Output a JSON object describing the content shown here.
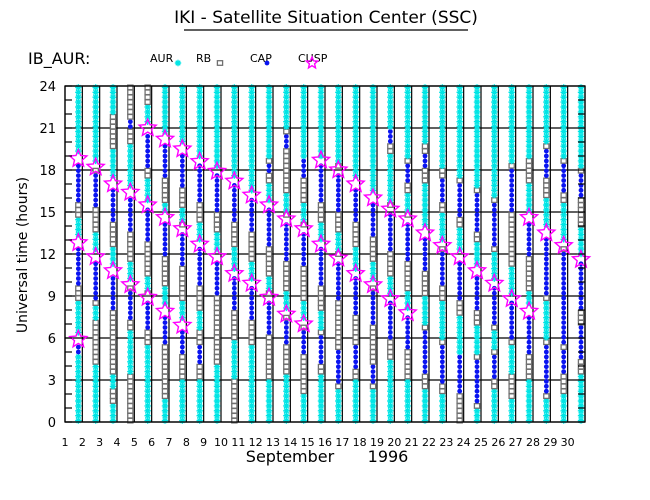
{
  "chart_data": {
    "type": "scatter",
    "title": "IKI - Satellite Situation Center (SSC)",
    "instrument": "IB_AUR:",
    "ylabel": "Universal time (hours)",
    "xlabel_month": "September",
    "xlabel_year": "1996",
    "ylim": [
      0,
      24
    ],
    "xlim": [
      1,
      31
    ],
    "yticks": [
      0,
      3,
      6,
      9,
      12,
      15,
      18,
      21,
      24
    ],
    "xticks": [
      1,
      2,
      3,
      4,
      5,
      6,
      7,
      8,
      9,
      10,
      11,
      12,
      13,
      14,
      15,
      16,
      17,
      18,
      19,
      20,
      21,
      22,
      23,
      24,
      25,
      26,
      27,
      28,
      29,
      30
    ],
    "grid": true,
    "legend_position": "top-left",
    "legend": [
      {
        "label": "AUR",
        "symbol": "asterisk",
        "color": "#00e5e5"
      },
      {
        "label": "RB",
        "symbol": "square",
        "color": "#707070"
      },
      {
        "label": "CAP",
        "symbol": "dot",
        "color": "#0a14f0"
      },
      {
        "label": "CUSP",
        "symbol": "star",
        "color": "#ff00ff"
      }
    ],
    "sample_step_hours": 0.35,
    "default_region": "RB",
    "days": [
      {
        "day": 1,
        "cusp": [
          18.8,
          12.8,
          5.9
        ],
        "cap": [
          [
            15.6,
            18.5
          ],
          [
            9.8,
            12.5
          ],
          [
            5.0,
            5.7
          ]
        ],
        "aur": [
          [
            19.1,
            24
          ],
          [
            13.1,
            14.6
          ],
          [
            6.2,
            8.5
          ],
          [
            0,
            4.8
          ]
        ]
      },
      {
        "day": 2,
        "cusp": [
          18.2,
          11.8
        ],
        "cap": [
          [
            15.4,
            17.9
          ],
          [
            8.6,
            11.5
          ]
        ],
        "aur": [
          [
            18.5,
            24
          ],
          [
            12.1,
            13.5
          ],
          [
            7.2,
            8.4
          ],
          [
            0,
            4.2
          ]
        ]
      },
      {
        "day": 3,
        "cusp": [
          17.0,
          10.8
        ],
        "cap": [
          [
            14.2,
            16.7
          ],
          [
            8.0,
            10.5
          ]
        ],
        "aur": [
          [
            17.3,
            19.5
          ],
          [
            22,
            24
          ],
          [
            11.1,
            12.5
          ],
          [
            2.5,
            3.5
          ],
          [
            0,
            1.2
          ]
        ]
      },
      {
        "day": 4,
        "cusp": [
          16.4,
          9.8
        ],
        "cap": [
          [
            13.4,
            16.1
          ],
          [
            7.2,
            9.5
          ],
          [
            20.8,
            21.6
          ]
        ],
        "aur": [
          [
            16.7,
            20
          ],
          [
            10.1,
            11.6
          ],
          [
            3.5,
            6.5
          ]
        ]
      },
      {
        "day": 5,
        "cusp": [
          21.0,
          15.5,
          8.9
        ],
        "cap": [
          [
            18.2,
            20.7
          ],
          [
            12.9,
            15.2
          ],
          [
            6.5,
            8.6
          ]
        ],
        "aur": [
          [
            21.3,
            22.8
          ],
          [
            15.8,
            17.5
          ],
          [
            9.2,
            10.5
          ],
          [
            0,
            5.5
          ]
        ]
      },
      {
        "day": 6,
        "cusp": [
          20.2,
          14.6,
          7.9
        ],
        "cap": [
          [
            17.3,
            19.9
          ],
          [
            11.8,
            14.3
          ],
          [
            5.6,
            7.6
          ]
        ],
        "aur": [
          [
            20.5,
            24
          ],
          [
            14.9,
            15.8
          ],
          [
            8.2,
            9.6
          ],
          [
            0,
            1.5
          ]
        ]
      },
      {
        "day": 7,
        "cusp": [
          19.5,
          13.8,
          6.9
        ],
        "cap": [
          [
            16.8,
            19.2
          ],
          [
            11.0,
            13.5
          ],
          [
            5.0,
            6.6
          ]
        ],
        "aur": [
          [
            19.8,
            24
          ],
          [
            14.1,
            15.2
          ],
          [
            7.2,
            8.8
          ],
          [
            0,
            3
          ]
        ]
      },
      {
        "day": 8,
        "cusp": [
          18.6,
          12.7
        ],
        "cap": [
          [
            15.6,
            18.3
          ],
          [
            9.8,
            12.4
          ],
          [
            4.0,
            5.5
          ]
        ],
        "aur": [
          [
            18.9,
            24
          ],
          [
            13.0,
            14.2
          ],
          [
            6.5,
            8
          ],
          [
            0,
            3.2
          ]
        ]
      },
      {
        "day": 9,
        "cusp": [
          17.9,
          11.8
        ],
        "cap": [
          [
            15.0,
            17.6
          ],
          [
            9.0,
            11.5
          ]
        ],
        "aur": [
          [
            18.2,
            24
          ],
          [
            12.1,
            13.4
          ],
          [
            0,
            4
          ]
        ]
      },
      {
        "day": 10,
        "cusp": [
          17.2,
          10.6
        ],
        "cap": [
          [
            14.3,
            16.9
          ],
          [
            7.9,
            10.3
          ]
        ],
        "aur": [
          [
            17.5,
            24
          ],
          [
            10.9,
            12.5
          ],
          [
            3,
            6
          ]
        ]
      },
      {
        "day": 11,
        "cusp": [
          16.2,
          9.9
        ],
        "cap": [
          [
            13.4,
            15.9
          ],
          [
            7.2,
            9.6
          ]
        ],
        "aur": [
          [
            16.5,
            24
          ],
          [
            10.2,
            11.4
          ],
          [
            0,
            5.5
          ]
        ]
      },
      {
        "day": 12,
        "cusp": [
          15.5,
          8.9
        ],
        "cap": [
          [
            12.6,
            15.2
          ],
          [
            6.3,
            8.6
          ],
          [
            17.8,
            18.5
          ]
        ],
        "aur": [
          [
            15.8,
            17
          ],
          [
            19,
            24
          ],
          [
            9.2,
            10.5
          ],
          [
            0,
            3
          ]
        ]
      },
      {
        "day": 13,
        "cusp": [
          14.5,
          7.7
        ],
        "cap": [
          [
            11.6,
            14.2
          ],
          [
            5.4,
            7.4
          ],
          [
            19.5,
            20.5
          ]
        ],
        "aur": [
          [
            14.8,
            16.5
          ],
          [
            21,
            24
          ],
          [
            8.0,
            9.2
          ],
          [
            0,
            3.5
          ]
        ]
      },
      {
        "day": 14,
        "cusp": [
          13.8,
          7.0
        ],
        "cap": [
          [
            11.0,
            13.5
          ],
          [
            4.8,
            6.7
          ],
          [
            17.5,
            18.8
          ]
        ],
        "aur": [
          [
            14.1,
            15.5
          ],
          [
            19,
            24
          ],
          [
            7.3,
            8.5
          ],
          [
            0,
            2
          ]
        ]
      },
      {
        "day": 15,
        "cusp": [
          18.7,
          12.7
        ],
        "cap": [
          [
            15.8,
            18.4
          ],
          [
            9.8,
            12.4
          ],
          [
            4.2,
            6.2
          ]
        ],
        "aur": [
          [
            19.0,
            24
          ],
          [
            13.0,
            14.4
          ],
          [
            6.5,
            8
          ],
          [
            0,
            3.5
          ]
        ]
      },
      {
        "day": 16,
        "cusp": [
          18.0,
          11.7
        ],
        "cap": [
          [
            15.0,
            17.7
          ],
          [
            8.8,
            11.4
          ],
          [
            2.8,
            5.2
          ]
        ],
        "aur": [
          [
            18.3,
            24
          ],
          [
            12.0,
            13.6
          ],
          [
            0,
            2.2
          ]
        ]
      },
      {
        "day": 17,
        "cusp": [
          17.0,
          10.6
        ],
        "cap": [
          [
            14.2,
            16.7
          ],
          [
            7.6,
            10.3
          ],
          [
            3.8,
            5.5
          ]
        ],
        "aur": [
          [
            17.3,
            24
          ],
          [
            10.9,
            12.4
          ],
          [
            0,
            3
          ]
        ]
      },
      {
        "day": 18,
        "cusp": [
          16.0,
          9.8
        ],
        "cap": [
          [
            13.2,
            15.7
          ],
          [
            6.8,
            9.5
          ],
          [
            2.8,
            4.2
          ]
        ],
        "aur": [
          [
            16.3,
            24
          ],
          [
            10.1,
            11.5
          ],
          [
            0,
            2.5
          ]
        ]
      },
      {
        "day": 19,
        "cusp": [
          15.2,
          8.8
        ],
        "cap": [
          [
            12.2,
            14.9
          ],
          [
            6.0,
            8.5
          ],
          [
            19.8,
            20.8
          ]
        ],
        "aur": [
          [
            15.5,
            19
          ],
          [
            21,
            24
          ],
          [
            9.1,
            10.5
          ],
          [
            0,
            4.5
          ]
        ]
      },
      {
        "day": 20,
        "cusp": [
          14.5,
          7.8
        ],
        "cap": [
          [
            11.4,
            14.2
          ],
          [
            5.2,
            7.5
          ],
          [
            17.2,
            18.5
          ]
        ],
        "aur": [
          [
            14.8,
            16.5
          ],
          [
            19,
            24
          ],
          [
            8.1,
            9.5
          ],
          [
            0,
            3
          ]
        ]
      },
      {
        "day": 21,
        "cusp": [
          13.5
        ],
        "cap": [
          [
            10.6,
            13.2
          ],
          [
            3.5,
            6.5
          ],
          [
            18.0,
            19.2
          ]
        ],
        "aur": [
          [
            13.8,
            17
          ],
          [
            20,
            24
          ],
          [
            7,
            9
          ],
          [
            0,
            2.5
          ]
        ]
      },
      {
        "day": 22,
        "cusp": [
          12.6
        ],
        "cap": [
          [
            9.8,
            12.3
          ],
          [
            2.8,
            5.5
          ],
          [
            15.5,
            17.5
          ]
        ],
        "aur": [
          [
            12.9,
            15
          ],
          [
            18,
            24
          ],
          [
            6,
            8.5
          ],
          [
            0,
            2
          ]
        ]
      },
      {
        "day": 23,
        "cusp": [
          11.8
        ],
        "cap": [
          [
            8.8,
            11.5
          ],
          [
            2.2,
            4.8
          ],
          [
            14.5,
            17.0
          ]
        ],
        "aur": [
          [
            12.1,
            14
          ],
          [
            17.5,
            24
          ],
          [
            5,
            7.5
          ]
        ]
      },
      {
        "day": 24,
        "cusp": [
          10.8
        ],
        "cap": [
          [
            8.0,
            10.5
          ],
          [
            1.5,
            4.5
          ],
          [
            13.5,
            16.2
          ]
        ],
        "aur": [
          [
            11.1,
            13
          ],
          [
            16.8,
            24
          ],
          [
            5,
            7
          ],
          [
            0,
            1
          ]
        ]
      },
      {
        "day": 25,
        "cusp": [
          9.9
        ],
        "cap": [
          [
            7.0,
            9.6
          ],
          [
            3.0,
            4.8
          ],
          [
            12.6,
            15.5
          ]
        ],
        "aur": [
          [
            10.2,
            12
          ],
          [
            16,
            24
          ],
          [
            5.2,
            6.5
          ],
          [
            0,
            2.5
          ]
        ]
      },
      {
        "day": 26,
        "cusp": [
          8.8
        ],
        "cap": [
          [
            6.0,
            8.5
          ],
          [
            14.8,
            18.0
          ]
        ],
        "aur": [
          [
            9.1,
            11
          ],
          [
            18.5,
            24
          ],
          [
            3.5,
            5.5
          ],
          [
            0,
            1.5
          ]
        ]
      },
      {
        "day": 27,
        "cusp": [
          14.6,
          7.9
        ],
        "cap": [
          [
            11.8,
            14.3
          ],
          [
            5.0,
            7.6
          ]
        ],
        "aur": [
          [
            14.9,
            17
          ],
          [
            19,
            24
          ],
          [
            8.2,
            9.5
          ],
          [
            0,
            3
          ]
        ]
      },
      {
        "day": 28,
        "cusp": [
          13.5
        ],
        "cap": [
          [
            9.0,
            13.2
          ],
          [
            2.2,
            5.5
          ],
          [
            17.5,
            19.5
          ]
        ],
        "aur": [
          [
            13.8,
            16
          ],
          [
            20,
            24
          ],
          [
            5.8,
            8.5
          ],
          [
            0,
            1.5
          ]
        ]
      },
      {
        "day": 29,
        "cusp": [
          12.6
        ],
        "cap": [
          [
            5.5,
            12.3
          ],
          [
            3.5,
            5.2
          ],
          [
            16.5,
            18.5
          ]
        ],
        "aur": [
          [
            12.9,
            15.5
          ],
          [
            19,
            24
          ],
          [
            0,
            2
          ]
        ]
      },
      {
        "day": 30,
        "cusp": [
          11.6
        ],
        "cap": [
          [
            8.0,
            11.3
          ],
          [
            4.5,
            7.0
          ],
          [
            16.0,
            17.8
          ]
        ],
        "aur": [
          [
            11.9,
            14
          ],
          [
            18.2,
            24
          ],
          [
            0,
            3.5
          ]
        ]
      }
    ]
  }
}
